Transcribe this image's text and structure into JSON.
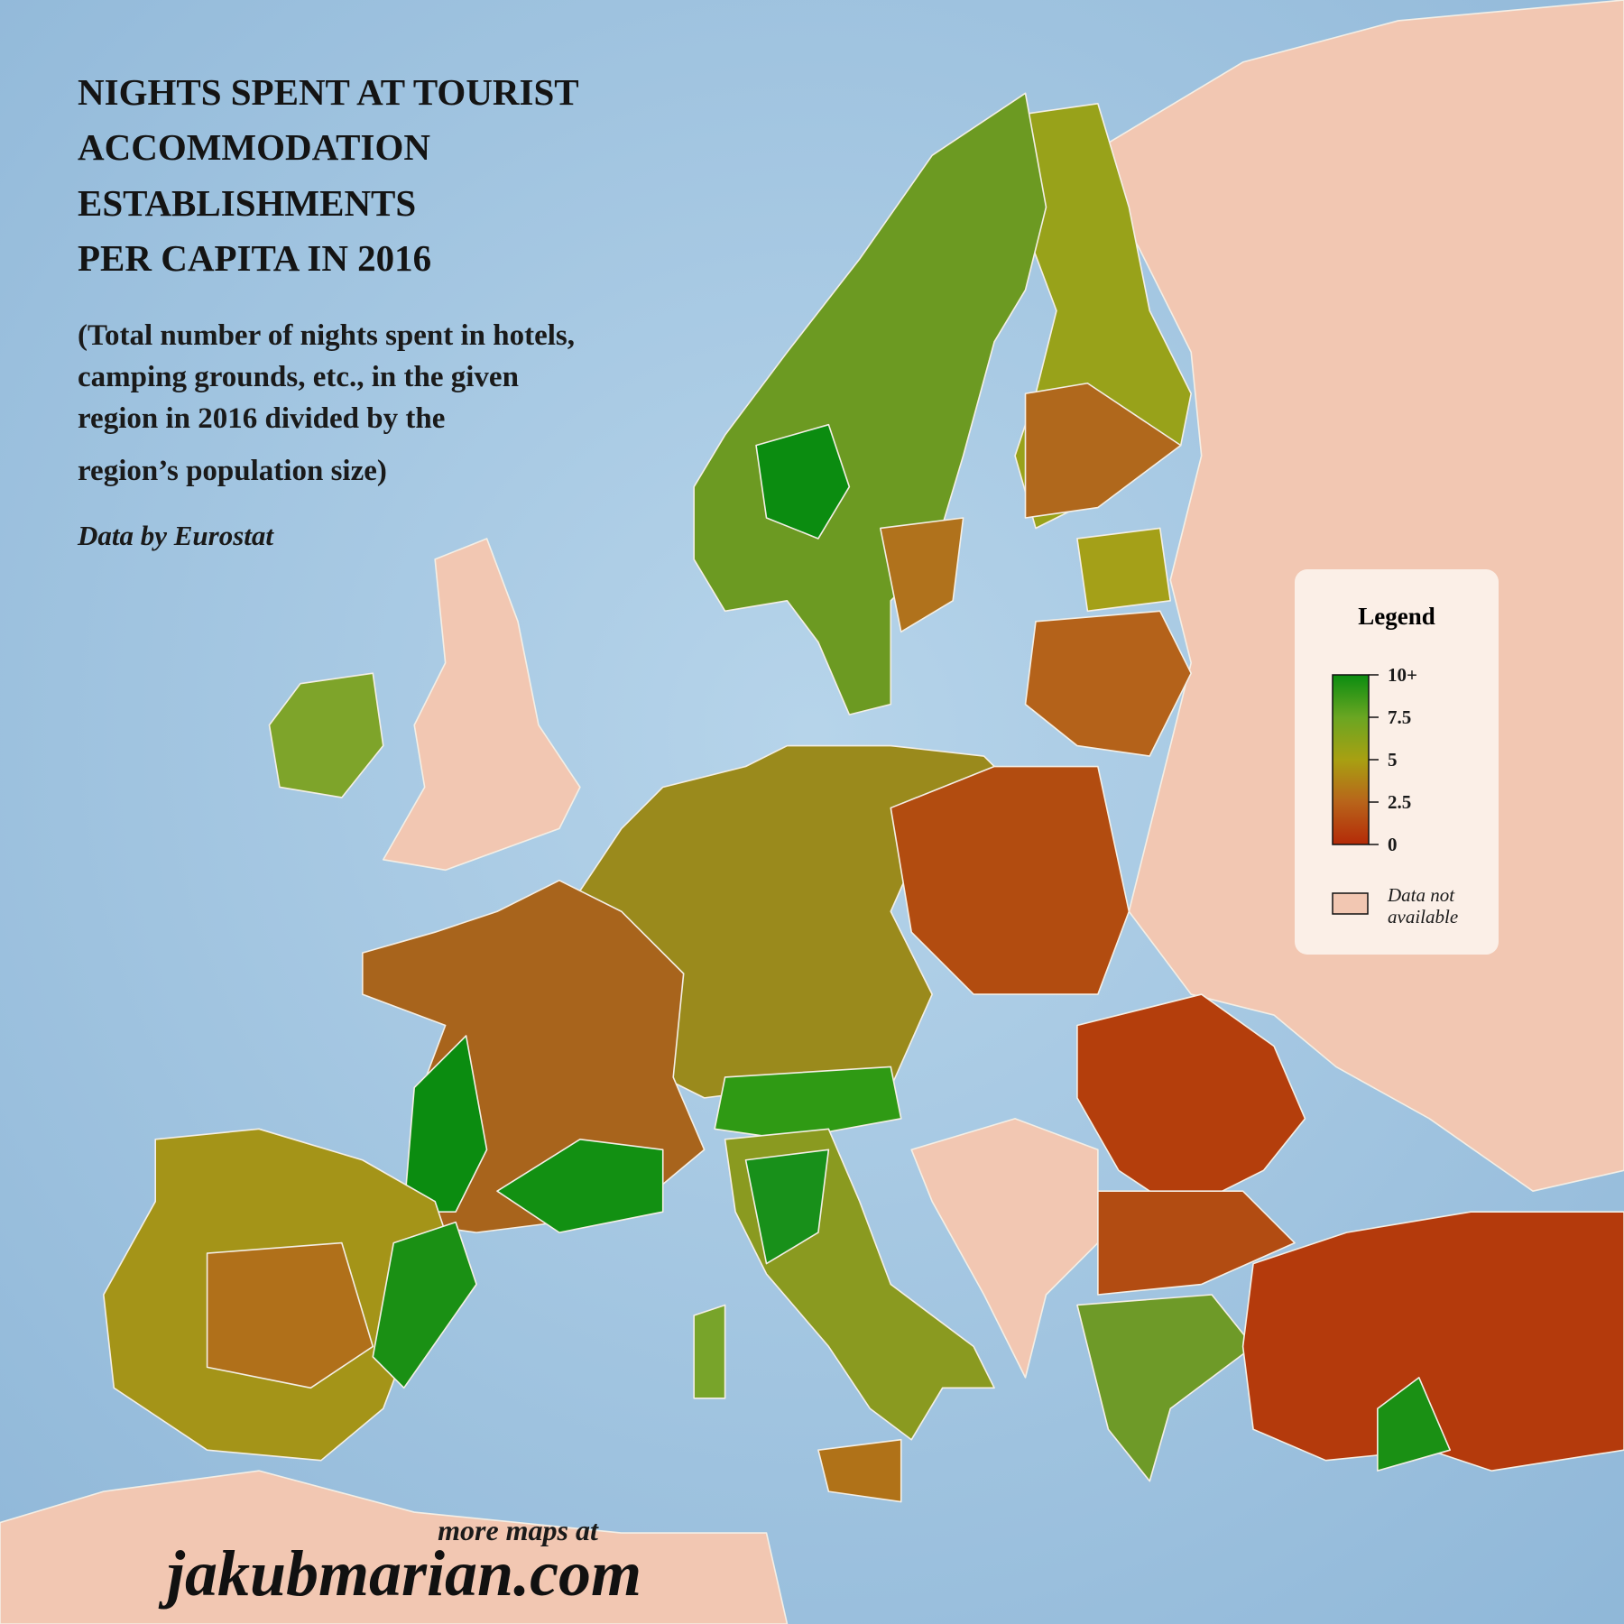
{
  "header": {
    "title": [
      "NIGHTS SPENT AT TOURIST",
      "ACCOMMODATION",
      "ESTABLISHMENTS",
      "PER CAPITA IN 2016"
    ],
    "subtitle": [
      "(Total number of nights spent in hotels,",
      "camping grounds, etc., in the given",
      "region in 2016 divided by the",
      "region’s population size)"
    ],
    "source": "Data by Eurostat"
  },
  "legend": {
    "title": "Legend",
    "colors": [
      "#b42a08",
      "#b8641a",
      "#a8a012",
      "#6aa622",
      "#0b8c10"
    ],
    "ticks": [
      {
        "value": 10,
        "label": "10+"
      },
      {
        "value": 7.5,
        "label": "7.5"
      },
      {
        "value": 5,
        "label": "5"
      },
      {
        "value": 2.5,
        "label": "2.5"
      },
      {
        "value": 0,
        "label": "0"
      }
    ],
    "na_label": [
      "Data not",
      "available"
    ]
  },
  "footer": {
    "line1": "more maps at",
    "site": "jakubmarian.com"
  }
}
